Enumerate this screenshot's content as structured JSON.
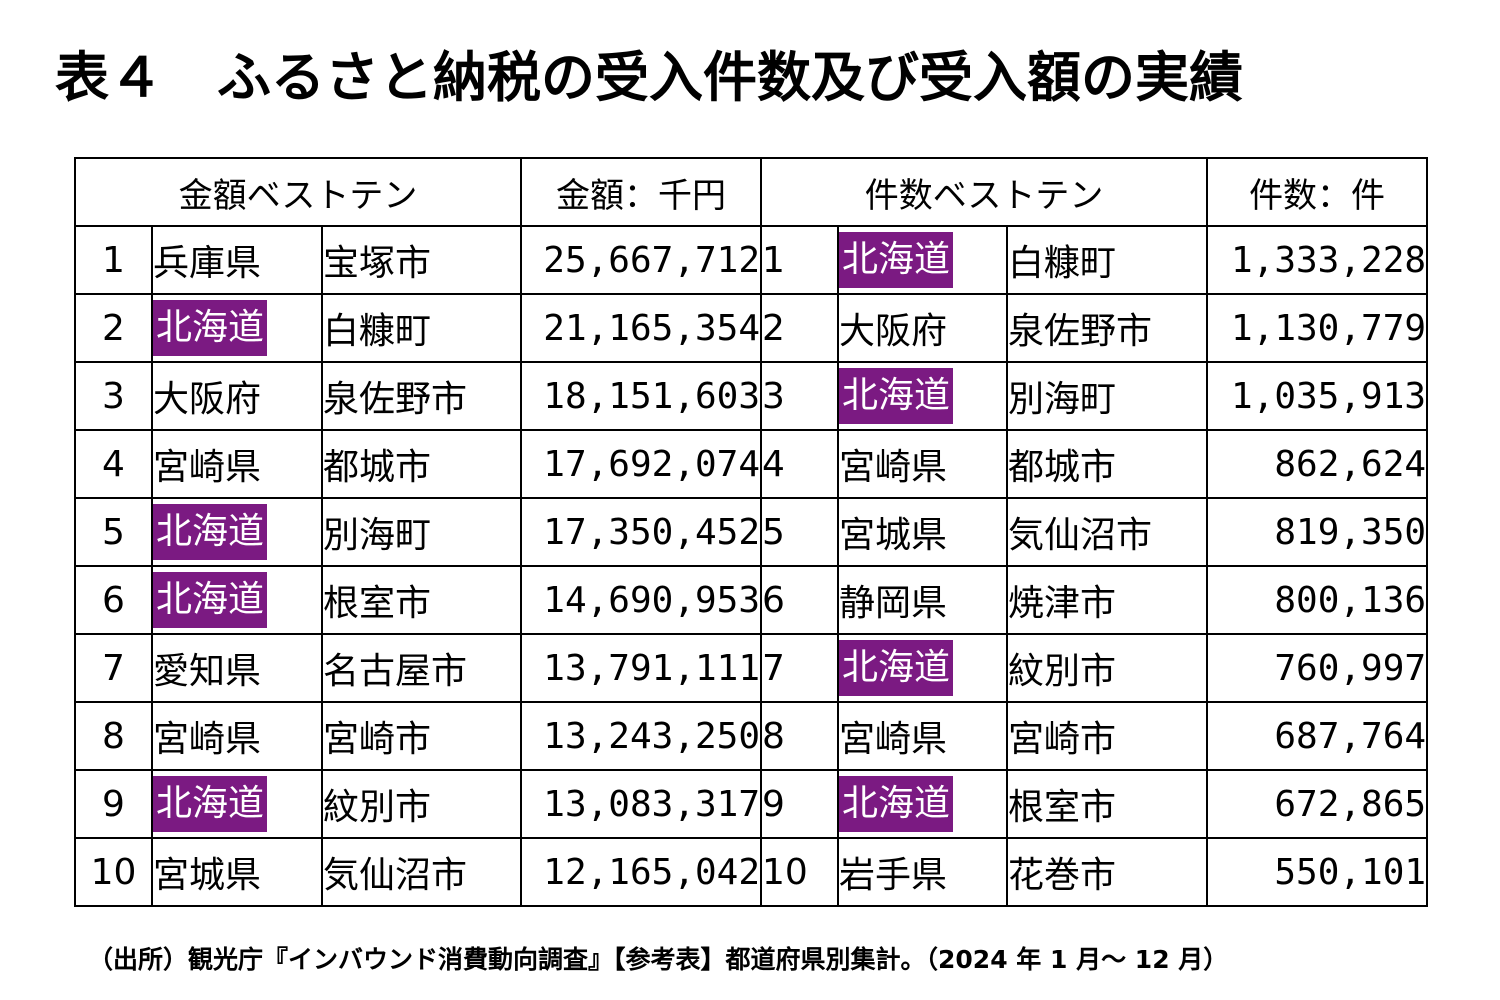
{
  "title": "表４　ふるさと納税の受入件数及び受入額の実績",
  "headers": {
    "amount_top": "金額ベストテン",
    "amount_unit": "金額：千円",
    "count_top": "件数ベストテン",
    "count_unit": "件数：件"
  },
  "highlight_color": "#7b1a82",
  "rows": [
    {
      "rank": "1",
      "a_pref": "兵庫県",
      "a_city": "宝塚市",
      "a_val": "25,667,712",
      "a_hl": false,
      "c_rank": "1",
      "c_pref": "北海道",
      "c_city": "白糠町",
      "c_val": "1,333,228",
      "c_hl": true
    },
    {
      "rank": "2",
      "a_pref": "北海道",
      "a_city": "白糠町",
      "a_val": "21,165,354",
      "a_hl": true,
      "c_rank": "2",
      "c_pref": "大阪府",
      "c_city": "泉佐野市",
      "c_val": "1,130,779",
      "c_hl": false
    },
    {
      "rank": "3",
      "a_pref": "大阪府",
      "a_city": "泉佐野市",
      "a_val": "18,151,603",
      "a_hl": false,
      "c_rank": "3",
      "c_pref": "北海道",
      "c_city": "別海町",
      "c_val": "1,035,913",
      "c_hl": true
    },
    {
      "rank": "4",
      "a_pref": "宮崎県",
      "a_city": "都城市",
      "a_val": "17,692,074",
      "a_hl": false,
      "c_rank": "4",
      "c_pref": "宮崎県",
      "c_city": "都城市",
      "c_val": "862,624",
      "c_hl": false
    },
    {
      "rank": "5",
      "a_pref": "北海道",
      "a_city": "別海町",
      "a_val": "17,350,452",
      "a_hl": true,
      "c_rank": "5",
      "c_pref": "宮城県",
      "c_city": "気仙沼市",
      "c_val": "819,350",
      "c_hl": false
    },
    {
      "rank": "6",
      "a_pref": "北海道",
      "a_city": "根室市",
      "a_val": "14,690,953",
      "a_hl": true,
      "c_rank": "6",
      "c_pref": "静岡県",
      "c_city": "焼津市",
      "c_val": "800,136",
      "c_hl": false
    },
    {
      "rank": "7",
      "a_pref": "愛知県",
      "a_city": "名古屋市",
      "a_val": "13,791,111",
      "a_hl": false,
      "c_rank": "7",
      "c_pref": "北海道",
      "c_city": "紋別市",
      "c_val": "760,997",
      "c_hl": true
    },
    {
      "rank": "8",
      "a_pref": "宮崎県",
      "a_city": "宮崎市",
      "a_val": "13,243,250",
      "a_hl": false,
      "c_rank": "8",
      "c_pref": "宮崎県",
      "c_city": "宮崎市",
      "c_val": "687,764",
      "c_hl": false
    },
    {
      "rank": "9",
      "a_pref": "北海道",
      "a_city": "紋別市",
      "a_val": "13,083,317",
      "a_hl": true,
      "c_rank": "9",
      "c_pref": "北海道",
      "c_city": "根室市",
      "c_val": "672,865",
      "c_hl": true
    },
    {
      "rank": "10",
      "a_pref": "宮城県",
      "a_city": "気仙沼市",
      "a_val": "12,165,042",
      "a_hl": false,
      "c_rank": "10",
      "c_pref": "岩手県",
      "c_city": "花巻市",
      "c_val": "550,101",
      "c_hl": false
    }
  ],
  "source": "（出所）観光庁『インバウンド消費動向調査』【参考表】都道府県別集計。（2024 年 1 月〜 12 月）"
}
